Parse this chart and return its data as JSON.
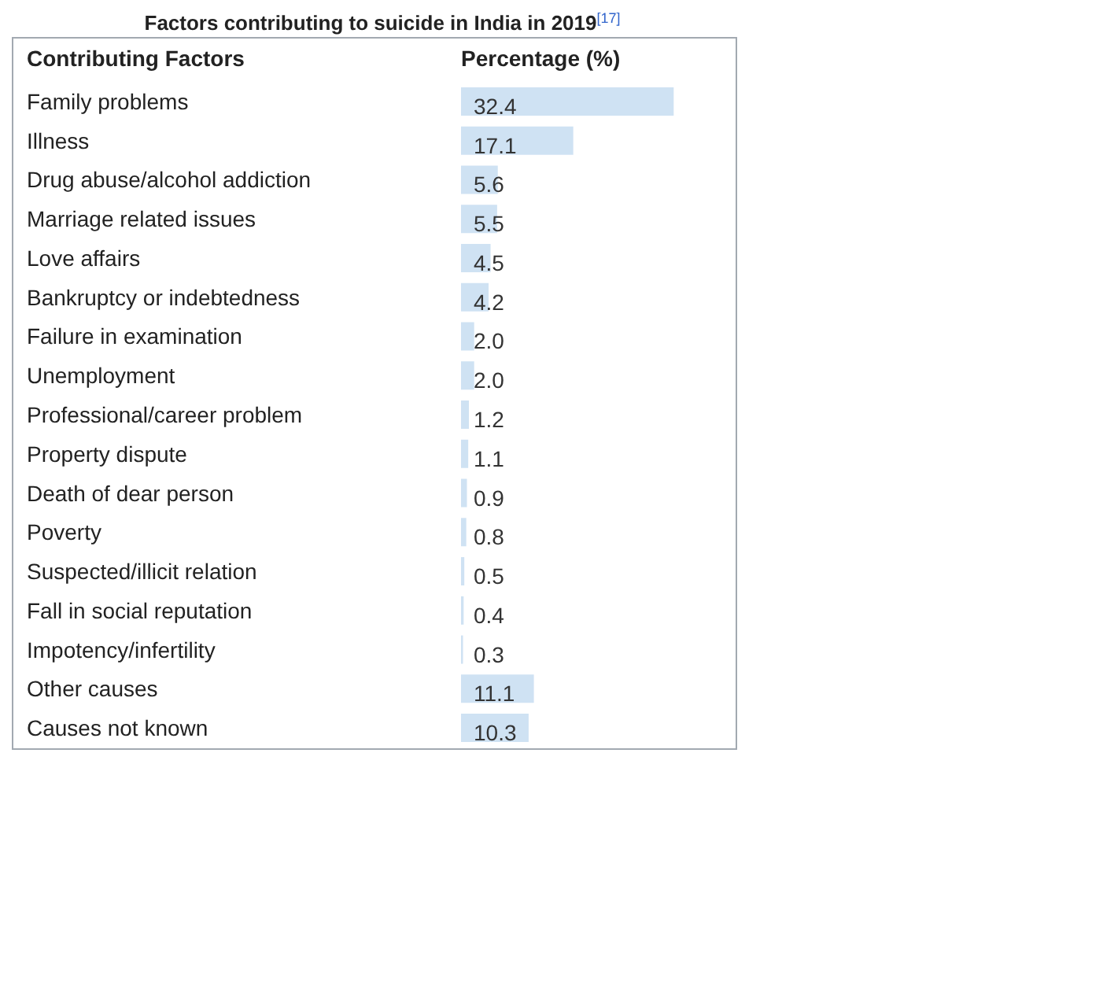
{
  "chart_data": {
    "type": "bar",
    "orientation": "horizontal",
    "title": "Factors contributing to suicide in India in 2019$^{[17]}$",
    "ylabel": "Contributing Factors",
    "xlabel": "Percentage (%)",
    "categories": [
      "Family problems",
      "Illness",
      "Drug abuse/alcohol addiction",
      "Marriage related issues",
      "Love affairs",
      "Bankruptcy or indebtedness",
      "Failure in examination",
      "Unemployment",
      "Professional/career problem",
      "Property dispute",
      "Death of dear person",
      "Poverty",
      "Suspected/illicit relation",
      "Fall in social reputation",
      "Impotency/infertility",
      "Other causes",
      "Causes not known"
    ],
    "values": [
      32.4,
      17.1,
      5.6,
      5.5,
      4.5,
      4.2,
      2.0,
      2.0,
      1.2,
      1.1,
      0.9,
      0.8,
      0.5,
      0.4,
      0.3,
      11.1,
      10.3
    ],
    "value_labels": [
      "32.4",
      "17.1",
      "5.6",
      "5.5",
      "4.5",
      "4.2",
      "2.0",
      "2.0",
      "1.2",
      "1.1",
      "0.9",
      "0.8",
      "0.5",
      "0.4",
      "0.3",
      "11.1",
      "10.3"
    ],
    "color": "#cfe2f3"
  }
}
